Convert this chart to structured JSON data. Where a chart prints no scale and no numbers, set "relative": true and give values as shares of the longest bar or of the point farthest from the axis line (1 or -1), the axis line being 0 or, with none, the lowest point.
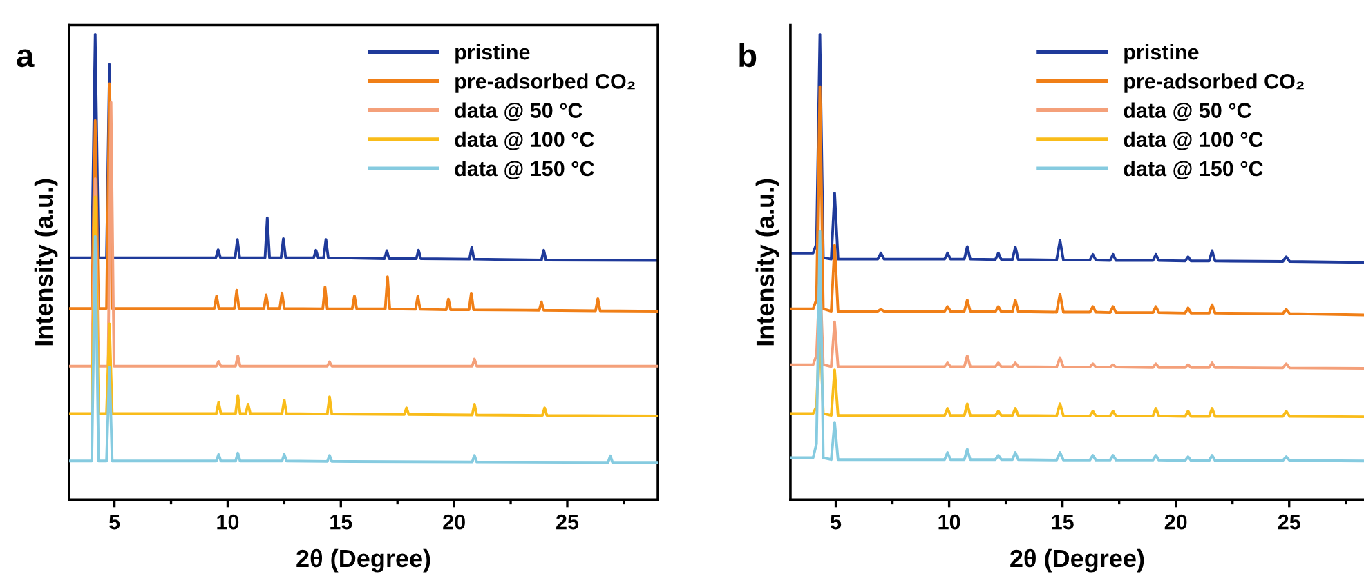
{
  "chart_data": [
    {
      "type": "line",
      "relative": true,
      "annotations": [
        "a"
      ],
      "xlabel": "2θ (Degree)",
      "ylabel": "Intensity (a.u.)",
      "xlim": [
        3,
        29
      ],
      "xticks": [
        5,
        {
          "value": 7.5,
          "label": null
        },
        10,
        {
          "value": 12.5,
          "label": null
        },
        15,
        {
          "value": 17.5,
          "label": null
        },
        20,
        {
          "value": 22.5,
          "label": null
        },
        25,
        {
          "value": 27.5,
          "label": null
        }
      ],
      "tick_labels": "x",
      "grid": false,
      "legend": "top right",
      "marker": "none",
      "line_style": "solid",
      "series": [
        {
          "name": "pristine",
          "color": "#1f3a9a",
          "x": [
            3,
            4.0,
            4.15,
            4.3,
            4.65,
            4.78,
            4.9,
            9.48,
            9.58,
            9.68,
            10.33,
            10.43,
            10.53,
            11.65,
            11.75,
            11.85,
            12.36,
            12.46,
            12.56,
            13.8,
            13.9,
            14.0,
            14.24,
            14.34,
            14.44,
            16.93,
            17.03,
            17.13,
            18.33,
            18.43,
            18.53,
            20.68,
            20.78,
            20.88,
            23.86,
            23.96,
            24.06,
            29
          ],
          "values": [
            0.52,
            0.52,
            1.0,
            0.52,
            0.52,
            0.935,
            0.52,
            0.52,
            0.537,
            0.52,
            0.52,
            0.559,
            0.52,
            0.52,
            0.606,
            0.52,
            0.52,
            0.561,
            0.52,
            0.52,
            0.536,
            0.52,
            0.52,
            0.559,
            0.52,
            0.518,
            0.535,
            0.518,
            0.518,
            0.536,
            0.518,
            0.517,
            0.542,
            0.517,
            0.515,
            0.536,
            0.515,
            0.514
          ]
        },
        {
          "name": "pre-adsorbed CO₂",
          "color": "#f07f17",
          "x": [
            3,
            4.0,
            4.15,
            4.3,
            4.65,
            4.78,
            4.9,
            9.41,
            9.51,
            9.61,
            10.3,
            10.4,
            10.5,
            11.6,
            11.7,
            11.8,
            12.3,
            12.4,
            12.5,
            14.2,
            14.3,
            14.4,
            15.5,
            15.6,
            15.7,
            16.96,
            17.06,
            17.16,
            18.3,
            18.4,
            18.5,
            19.65,
            19.75,
            19.85,
            20.66,
            20.76,
            20.86,
            23.76,
            23.86,
            23.96,
            26.25,
            26.35,
            26.45,
            29
          ],
          "values": [
            0.411,
            0.411,
            0.815,
            0.411,
            0.411,
            0.894,
            0.411,
            0.411,
            0.4375,
            0.411,
            0.411,
            0.45,
            0.411,
            0.411,
            0.44,
            0.411,
            0.411,
            0.444,
            0.411,
            0.41,
            0.457,
            0.41,
            0.41,
            0.4375,
            0.41,
            0.41,
            0.479,
            0.41,
            0.409,
            0.4375,
            0.409,
            0.408,
            0.431,
            0.408,
            0.408,
            0.444,
            0.408,
            0.407,
            0.425,
            0.407,
            0.406,
            0.432,
            0.406,
            0.405
          ]
        },
        {
          "name": "data @ 50 °C",
          "color": "#f4a07a",
          "x": [
            3,
            4.0,
            4.15,
            4.3,
            4.72,
            4.85,
            4.98,
            9.5,
            9.6,
            9.7,
            10.35,
            10.45,
            10.55,
            14.4,
            14.5,
            14.6,
            20.8,
            20.9,
            21.0,
            29
          ],
          "values": [
            0.287,
            0.287,
            0.69,
            0.287,
            0.287,
            0.854,
            0.287,
            0.287,
            0.297,
            0.287,
            0.287,
            0.309,
            0.287,
            0.287,
            0.296,
            0.287,
            0.287,
            0.302,
            0.287,
            0.287
          ]
        },
        {
          "name": "data @ 100 °C",
          "color": "#f9bc1a",
          "x": [
            3,
            4.0,
            4.15,
            4.3,
            4.65,
            4.78,
            4.9,
            9.5,
            9.6,
            9.7,
            10.35,
            10.45,
            10.55,
            10.8,
            10.9,
            11.0,
            12.4,
            12.5,
            12.6,
            14.4,
            14.5,
            14.6,
            17.8,
            17.9,
            18.0,
            20.8,
            20.9,
            21.0,
            23.9,
            24.0,
            24.1,
            29
          ],
          "values": [
            0.185,
            0.185,
            0.651,
            0.185,
            0.185,
            0.378,
            0.185,
            0.185,
            0.209,
            0.185,
            0.185,
            0.224,
            0.185,
            0.185,
            0.205,
            0.185,
            0.185,
            0.214,
            0.185,
            0.184,
            0.221,
            0.184,
            0.183,
            0.197,
            0.183,
            0.182,
            0.205,
            0.182,
            0.181,
            0.197,
            0.181,
            0.18
          ]
        },
        {
          "name": "data @ 150 °C",
          "color": "#86cbe0",
          "x": [
            3,
            4.0,
            4.15,
            4.3,
            4.65,
            4.78,
            4.9,
            9.5,
            9.6,
            9.7,
            10.35,
            10.45,
            10.55,
            12.4,
            12.5,
            12.6,
            14.4,
            14.5,
            14.6,
            20.8,
            20.9,
            21.0,
            26.8,
            26.9,
            27.0,
            29
          ],
          "values": [
            0.083,
            0.083,
            0.566,
            0.083,
            0.083,
            0.284,
            0.083,
            0.083,
            0.097,
            0.083,
            0.083,
            0.1,
            0.083,
            0.083,
            0.097,
            0.083,
            0.082,
            0.095,
            0.082,
            0.081,
            0.095,
            0.081,
            0.08,
            0.094,
            0.08,
            0.08
          ]
        }
      ]
    },
    {
      "type": "line",
      "relative": true,
      "annotations": [
        "b"
      ],
      "xlabel": "2θ (Degree)",
      "ylabel": "Intensity (a.u.)",
      "xlim": [
        3,
        28.3
      ],
      "xticks": [
        5,
        {
          "value": 7.5,
          "label": null
        },
        10,
        {
          "value": 12.5,
          "label": null
        },
        15,
        {
          "value": 17.5,
          "label": null
        },
        20,
        {
          "value": 22.5,
          "label": null
        },
        25,
        {
          "value": 27.5,
          "label": null
        }
      ],
      "x": [
        3,
        4.0,
        4.15,
        4.3,
        4.45,
        4.8,
        4.95,
        5.1,
        6.85,
        6.99,
        7.13,
        9.8,
        9.93,
        10.06,
        10.67,
        10.8,
        10.93,
        12.04,
        12.17,
        12.3,
        12.79,
        12.92,
        13.05,
        14.74,
        14.89,
        15.04,
        16.21,
        16.34,
        16.47,
        17.1,
        17.23,
        17.36,
        18.99,
        19.12,
        19.25,
        20.41,
        20.54,
        20.67,
        21.47,
        21.6,
        21.73,
        24.72,
        24.87,
        25.02,
        28.3
      ],
      "tick_labels": "x",
      "grid": false,
      "legend": "top right",
      "marker": "none",
      "line_style": "solid",
      "series": [
        {
          "name": "pristine",
          "color": "#1f3a9a",
          "values": [
            0.53,
            0.53,
            0.55,
            1.0,
            0.52,
            0.517,
            0.659,
            0.517,
            0.517,
            0.53,
            0.517,
            0.517,
            0.53,
            0.517,
            0.517,
            0.544,
            0.517,
            0.516,
            0.53,
            0.516,
            0.516,
            0.543,
            0.516,
            0.515,
            0.557,
            0.515,
            0.515,
            0.527,
            0.515,
            0.514,
            0.527,
            0.514,
            0.514,
            0.527,
            0.514,
            0.513,
            0.522,
            0.513,
            0.513,
            0.535,
            0.513,
            0.512,
            0.522,
            0.512,
            0.51
          ]
        },
        {
          "name": "pre-adsorbed CO₂",
          "color": "#f07f17",
          "values": [
            0.41,
            0.41,
            0.43,
            0.888,
            0.41,
            0.405,
            0.547,
            0.405,
            0.405,
            0.409,
            0.405,
            0.405,
            0.415,
            0.405,
            0.405,
            0.429,
            0.405,
            0.404,
            0.415,
            0.404,
            0.404,
            0.429,
            0.404,
            0.403,
            0.442,
            0.403,
            0.403,
            0.415,
            0.403,
            0.402,
            0.415,
            0.402,
            0.402,
            0.415,
            0.402,
            0.401,
            0.412,
            0.401,
            0.401,
            0.419,
            0.401,
            0.4,
            0.409,
            0.4,
            0.397
          ]
        },
        {
          "name": "data @ 50 °C",
          "color": "#f4a07a",
          "values": [
            0.29,
            0.29,
            0.31,
            0.487,
            0.29,
            0.286,
            0.382,
            0.286,
            0.286,
            0.286,
            0.286,
            0.286,
            0.294,
            0.286,
            0.286,
            0.309,
            0.286,
            0.286,
            0.294,
            0.286,
            0.286,
            0.294,
            0.286,
            0.285,
            0.305,
            0.285,
            0.285,
            0.292,
            0.285,
            0.285,
            0.29,
            0.285,
            0.284,
            0.292,
            0.284,
            0.284,
            0.29,
            0.284,
            0.284,
            0.294,
            0.284,
            0.283,
            0.292,
            0.283,
            0.282
          ]
        },
        {
          "name": "data @ 100 °C",
          "color": "#f9bc1a",
          "values": [
            0.185,
            0.185,
            0.2,
            0.377,
            0.185,
            0.181,
            0.279,
            0.181,
            0.181,
            0.181,
            0.181,
            0.181,
            0.196,
            0.181,
            0.181,
            0.206,
            0.181,
            0.181,
            0.19,
            0.181,
            0.181,
            0.196,
            0.181,
            0.18,
            0.206,
            0.18,
            0.18,
            0.19,
            0.18,
            0.18,
            0.19,
            0.18,
            0.18,
            0.196,
            0.18,
            0.179,
            0.19,
            0.179,
            0.179,
            0.196,
            0.179,
            0.179,
            0.19,
            0.179,
            0.178
          ]
        },
        {
          "name": "data @ 150 °C",
          "color": "#86cbe0",
          "values": [
            0.09,
            0.09,
            0.12,
            0.577,
            0.09,
            0.086,
            0.166,
            0.086,
            0.086,
            0.086,
            0.086,
            0.086,
            0.101,
            0.086,
            0.086,
            0.108,
            0.086,
            0.086,
            0.095,
            0.086,
            0.086,
            0.101,
            0.086,
            0.085,
            0.101,
            0.085,
            0.085,
            0.095,
            0.085,
            0.085,
            0.095,
            0.085,
            0.085,
            0.095,
            0.085,
            0.084,
            0.092,
            0.084,
            0.084,
            0.095,
            0.084,
            0.084,
            0.092,
            0.084,
            0.083
          ]
        }
      ]
    }
  ]
}
